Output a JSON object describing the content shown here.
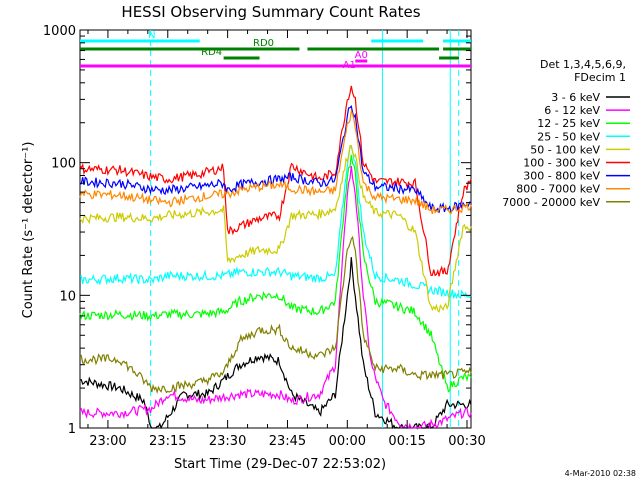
{
  "chart_data": {
    "type": "line",
    "title": "HESSI Observing Summary Count Rates",
    "xlabel": "Start Time (29-Dec-07 22:53:02)",
    "ylabel": "Count Rate (s⁻¹ detector⁻¹)",
    "yscale": "log",
    "ylim": [
      1,
      1000
    ],
    "xlim_minutes_after_22_53_02": [
      0,
      98
    ],
    "x_ticks": [
      "23:00",
      "23:15",
      "23:30",
      "23:45",
      "00:00",
      "00:15",
      "00:30"
    ],
    "x_tick_minutes": [
      7,
      22,
      37,
      52,
      67,
      82,
      97
    ],
    "y_ticks": [
      "1",
      "10",
      "100",
      "1000"
    ],
    "y_tick_values": [
      1,
      10,
      100,
      1000
    ],
    "legend_header": [
      "Det 1,3,4,5,6,9,",
      "FDecim 1"
    ],
    "legend_position": "right",
    "footer_date": "4-Mar-2010 02:38",
    "series": [
      {
        "name": "3 - 6 keV",
        "color": "#000000",
        "points": [
          [
            0,
            2.3
          ],
          [
            10,
            2.0
          ],
          [
            16,
            1.6
          ],
          [
            18,
            1.0
          ],
          [
            20,
            1.0
          ],
          [
            26,
            1.8
          ],
          [
            32,
            1.8
          ],
          [
            36,
            2.3
          ],
          [
            40,
            3.0
          ],
          [
            45,
            3.5
          ],
          [
            50,
            3.2
          ],
          [
            53,
            1.8
          ],
          [
            60,
            1.3
          ],
          [
            64,
            1.8
          ],
          [
            67,
            10
          ],
          [
            68,
            18
          ],
          [
            69,
            10
          ],
          [
            71,
            3
          ],
          [
            74,
            1.3
          ],
          [
            80,
            1.0
          ],
          [
            88,
            1.0
          ],
          [
            92,
            1.5
          ],
          [
            96,
            1.5
          ],
          [
            98,
            1.5
          ]
        ]
      },
      {
        "name": "6 - 12 keV",
        "color": "#ff00ff",
        "points": [
          [
            0,
            1.3
          ],
          [
            10,
            1.3
          ],
          [
            18,
            1.4
          ],
          [
            22,
            1.8
          ],
          [
            30,
            1.6
          ],
          [
            40,
            1.8
          ],
          [
            50,
            1.8
          ],
          [
            53,
            1.6
          ],
          [
            60,
            1.8
          ],
          [
            64,
            3
          ],
          [
            67,
            60
          ],
          [
            68,
            90
          ],
          [
            69,
            60
          ],
          [
            71,
            10
          ],
          [
            73,
            3
          ],
          [
            76,
            1.6
          ],
          [
            80,
            1.1
          ],
          [
            84,
            1.0
          ],
          [
            90,
            1.1
          ],
          [
            96,
            1.3
          ],
          [
            98,
            1.3
          ]
        ]
      },
      {
        "name": "12 - 25 keV",
        "color": "#00ff00",
        "points": [
          [
            0,
            7.0
          ],
          [
            10,
            7.2
          ],
          [
            18,
            7.0
          ],
          [
            22,
            7.2
          ],
          [
            30,
            7.2
          ],
          [
            36,
            7.5
          ],
          [
            40,
            9.0
          ],
          [
            45,
            10
          ],
          [
            50,
            10
          ],
          [
            53,
            8.0
          ],
          [
            60,
            7.5
          ],
          [
            64,
            9
          ],
          [
            67,
            80
          ],
          [
            68,
            110
          ],
          [
            69,
            80
          ],
          [
            71,
            20
          ],
          [
            74,
            9
          ],
          [
            78,
            8.5
          ],
          [
            84,
            7.5
          ],
          [
            88,
            5
          ],
          [
            92,
            2
          ],
          [
            96,
            2.4
          ],
          [
            98,
            2.4
          ]
        ]
      },
      {
        "name": "25 - 50 keV",
        "color": "#00ffff",
        "points": [
          [
            0,
            13
          ],
          [
            10,
            13.5
          ],
          [
            18,
            13
          ],
          [
            22,
            14
          ],
          [
            30,
            14
          ],
          [
            36,
            14
          ],
          [
            40,
            15
          ],
          [
            45,
            15
          ],
          [
            50,
            15
          ],
          [
            53,
            14
          ],
          [
            60,
            13.5
          ],
          [
            64,
            14
          ],
          [
            67,
            100
          ],
          [
            68,
            140
          ],
          [
            69,
            100
          ],
          [
            71,
            30
          ],
          [
            74,
            14
          ],
          [
            80,
            13
          ],
          [
            84,
            12
          ],
          [
            88,
            11
          ],
          [
            92,
            10.5
          ],
          [
            96,
            10
          ],
          [
            98,
            10
          ]
        ]
      },
      {
        "name": "50 - 100 keV",
        "color": "#cccc00",
        "points": [
          [
            0,
            38
          ],
          [
            10,
            39
          ],
          [
            18,
            38
          ],
          [
            22,
            40
          ],
          [
            30,
            42
          ],
          [
            36,
            44
          ],
          [
            37,
            18
          ],
          [
            40,
            20
          ],
          [
            45,
            22
          ],
          [
            50,
            22
          ],
          [
            53,
            40
          ],
          [
            60,
            41
          ],
          [
            64,
            45
          ],
          [
            67,
            110
          ],
          [
            68,
            140
          ],
          [
            69,
            110
          ],
          [
            71,
            55
          ],
          [
            74,
            42
          ],
          [
            80,
            40
          ],
          [
            84,
            30
          ],
          [
            88,
            8
          ],
          [
            92,
            8
          ],
          [
            96,
            33
          ],
          [
            98,
            33
          ]
        ]
      },
      {
        "name": "100 - 300 keV",
        "color": "#ff0000",
        "points": [
          [
            0,
            90
          ],
          [
            10,
            88
          ],
          [
            18,
            78
          ],
          [
            22,
            75
          ],
          [
            30,
            82
          ],
          [
            36,
            92
          ],
          [
            37,
            30
          ],
          [
            40,
            33
          ],
          [
            45,
            38
          ],
          [
            50,
            40
          ],
          [
            53,
            95
          ],
          [
            60,
            75
          ],
          [
            64,
            85
          ],
          [
            67,
            300
          ],
          [
            68,
            380
          ],
          [
            69,
            300
          ],
          [
            71,
            100
          ],
          [
            74,
            72
          ],
          [
            80,
            72
          ],
          [
            84,
            70
          ],
          [
            88,
            15
          ],
          [
            92,
            15
          ],
          [
            96,
            60
          ],
          [
            98,
            75
          ]
        ]
      },
      {
        "name": "300 - 800 keV",
        "color": "#0000ff",
        "points": [
          [
            0,
            72
          ],
          [
            10,
            70
          ],
          [
            18,
            63
          ],
          [
            22,
            62
          ],
          [
            30,
            66
          ],
          [
            36,
            70
          ],
          [
            37,
            62
          ],
          [
            40,
            68
          ],
          [
            45,
            72
          ],
          [
            50,
            75
          ],
          [
            53,
            78
          ],
          [
            60,
            70
          ],
          [
            64,
            74
          ],
          [
            67,
            220
          ],
          [
            68,
            280
          ],
          [
            69,
            220
          ],
          [
            71,
            85
          ],
          [
            74,
            66
          ],
          [
            80,
            64
          ],
          [
            84,
            62
          ],
          [
            88,
            45
          ],
          [
            92,
            45
          ],
          [
            96,
            48
          ],
          [
            98,
            50
          ]
        ]
      },
      {
        "name": "800 - 7000 keV",
        "color": "#ff8800",
        "points": [
          [
            0,
            58
          ],
          [
            10,
            57
          ],
          [
            18,
            52
          ],
          [
            22,
            50
          ],
          [
            30,
            55
          ],
          [
            36,
            58
          ],
          [
            37,
            58
          ],
          [
            40,
            62
          ],
          [
            45,
            66
          ],
          [
            50,
            68
          ],
          [
            53,
            64
          ],
          [
            60,
            60
          ],
          [
            64,
            62
          ],
          [
            67,
            190
          ],
          [
            68,
            240
          ],
          [
            69,
            190
          ],
          [
            71,
            70
          ],
          [
            74,
            55
          ],
          [
            80,
            53
          ],
          [
            84,
            52
          ],
          [
            88,
            44
          ],
          [
            92,
            44
          ],
          [
            96,
            46
          ],
          [
            98,
            48
          ]
        ]
      },
      {
        "name": "7000 - 20000 keV",
        "color": "#808000",
        "points": [
          [
            0,
            3.3
          ],
          [
            10,
            3.3
          ],
          [
            14,
            2.6
          ],
          [
            18,
            2.0
          ],
          [
            22,
            2.0
          ],
          [
            30,
            2.2
          ],
          [
            36,
            2.6
          ],
          [
            40,
            4.5
          ],
          [
            45,
            5.5
          ],
          [
            50,
            5.5
          ],
          [
            53,
            4.0
          ],
          [
            60,
            3.5
          ],
          [
            64,
            4
          ],
          [
            67,
            22
          ],
          [
            68,
            28
          ],
          [
            69,
            22
          ],
          [
            71,
            5
          ],
          [
            74,
            2.8
          ],
          [
            80,
            2.8
          ],
          [
            84,
            2.5
          ],
          [
            88,
            2.5
          ],
          [
            92,
            2.5
          ],
          [
            96,
            2.6
          ],
          [
            98,
            2.6
          ]
        ]
      }
    ],
    "attenuator_bars": [
      {
        "label": "N",
        "color": "#00ffff",
        "segments": [
          [
            0,
            30
          ],
          [
            73,
            86
          ],
          [
            91,
            98
          ]
        ],
        "label_at": 18
      },
      {
        "label": "RD0",
        "color": "#008000",
        "segments": [
          [
            0,
            55
          ],
          [
            57,
            90
          ],
          [
            91,
            98
          ]
        ],
        "label_at": 46
      },
      {
        "label": "RD4",
        "color": "#008000",
        "segments": [
          [
            36,
            45
          ],
          [
            90,
            95
          ]
        ],
        "label_at": 33
      },
      {
        "label": "",
        "color": "#ff00ff",
        "segments": [
          [
            0,
            98
          ]
        ],
        "label_at": null
      },
      {
        "label": "A0",
        "color": "#ff00ff",
        "segments": [
          [
            69,
            72
          ]
        ],
        "label_at": 70.5
      },
      {
        "label": "A1",
        "color": "#ff00ff",
        "segments": [],
        "label_at": 67.5
      }
    ],
    "vertical_markers": [
      {
        "x": 17.7,
        "color": "#00ffff",
        "style": "dashed"
      },
      {
        "x": 75.8,
        "color": "#00ffff",
        "style": "solid"
      },
      {
        "x": 92.8,
        "color": "#00ffff",
        "style": "solid"
      },
      {
        "x": 94.9,
        "color": "#00ffff",
        "style": "dashed"
      }
    ]
  }
}
